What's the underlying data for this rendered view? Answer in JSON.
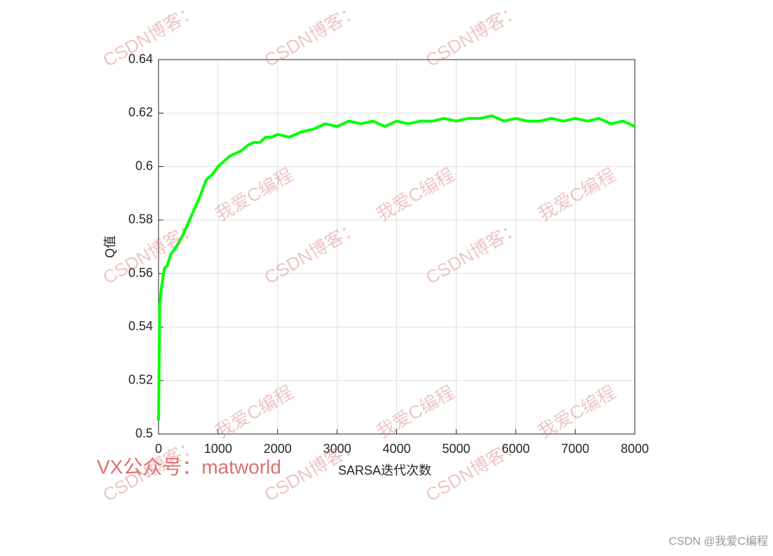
{
  "chart_data": {
    "type": "line",
    "xlabel": "SARSA迭代次数",
    "ylabel": "Q值",
    "x": [
      0,
      20,
      50,
      100,
      150,
      200,
      300,
      400,
      500,
      600,
      700,
      800,
      900,
      1000,
      1100,
      1200,
      1300,
      1400,
      1500,
      1600,
      1700,
      1800,
      1900,
      2000,
      2200,
      2400,
      2600,
      2800,
      3000,
      3200,
      3400,
      3600,
      3800,
      4000,
      4200,
      4400,
      4600,
      4800,
      5000,
      5200,
      5400,
      5600,
      5800,
      6000,
      6200,
      6400,
      6600,
      6800,
      7000,
      7200,
      7400,
      7600,
      7800,
      8000
    ],
    "values": [
      0.505,
      0.548,
      0.555,
      0.562,
      0.563,
      0.567,
      0.57,
      0.574,
      0.579,
      0.584,
      0.589,
      0.595,
      0.597,
      0.6,
      0.602,
      0.604,
      0.605,
      0.606,
      0.608,
      0.609,
      0.609,
      0.611,
      0.611,
      0.612,
      0.611,
      0.613,
      0.614,
      0.616,
      0.615,
      0.617,
      0.616,
      0.617,
      0.615,
      0.617,
      0.616,
      0.617,
      0.617,
      0.618,
      0.617,
      0.618,
      0.618,
      0.619,
      0.617,
      0.618,
      0.617,
      0.617,
      0.618,
      0.617,
      0.618,
      0.617,
      0.618,
      0.616,
      0.617,
      0.615
    ],
    "color": "#00ff00",
    "xlim": [
      0,
      8000
    ],
    "xticks": [
      0,
      1000,
      2000,
      3000,
      4000,
      5000,
      6000,
      7000,
      8000
    ],
    "ylim": [
      0.5,
      0.64
    ],
    "yticks": [
      0.5,
      0.52,
      0.54,
      0.56,
      0.58,
      0.6,
      0.62,
      0.64
    ],
    "grid": true,
    "watermarks": [
      "CSDN博客：",
      "我爱C编程"
    ],
    "annotations": [
      "VX公众号：matworld",
      "CSDN @我爱C编程"
    ]
  }
}
